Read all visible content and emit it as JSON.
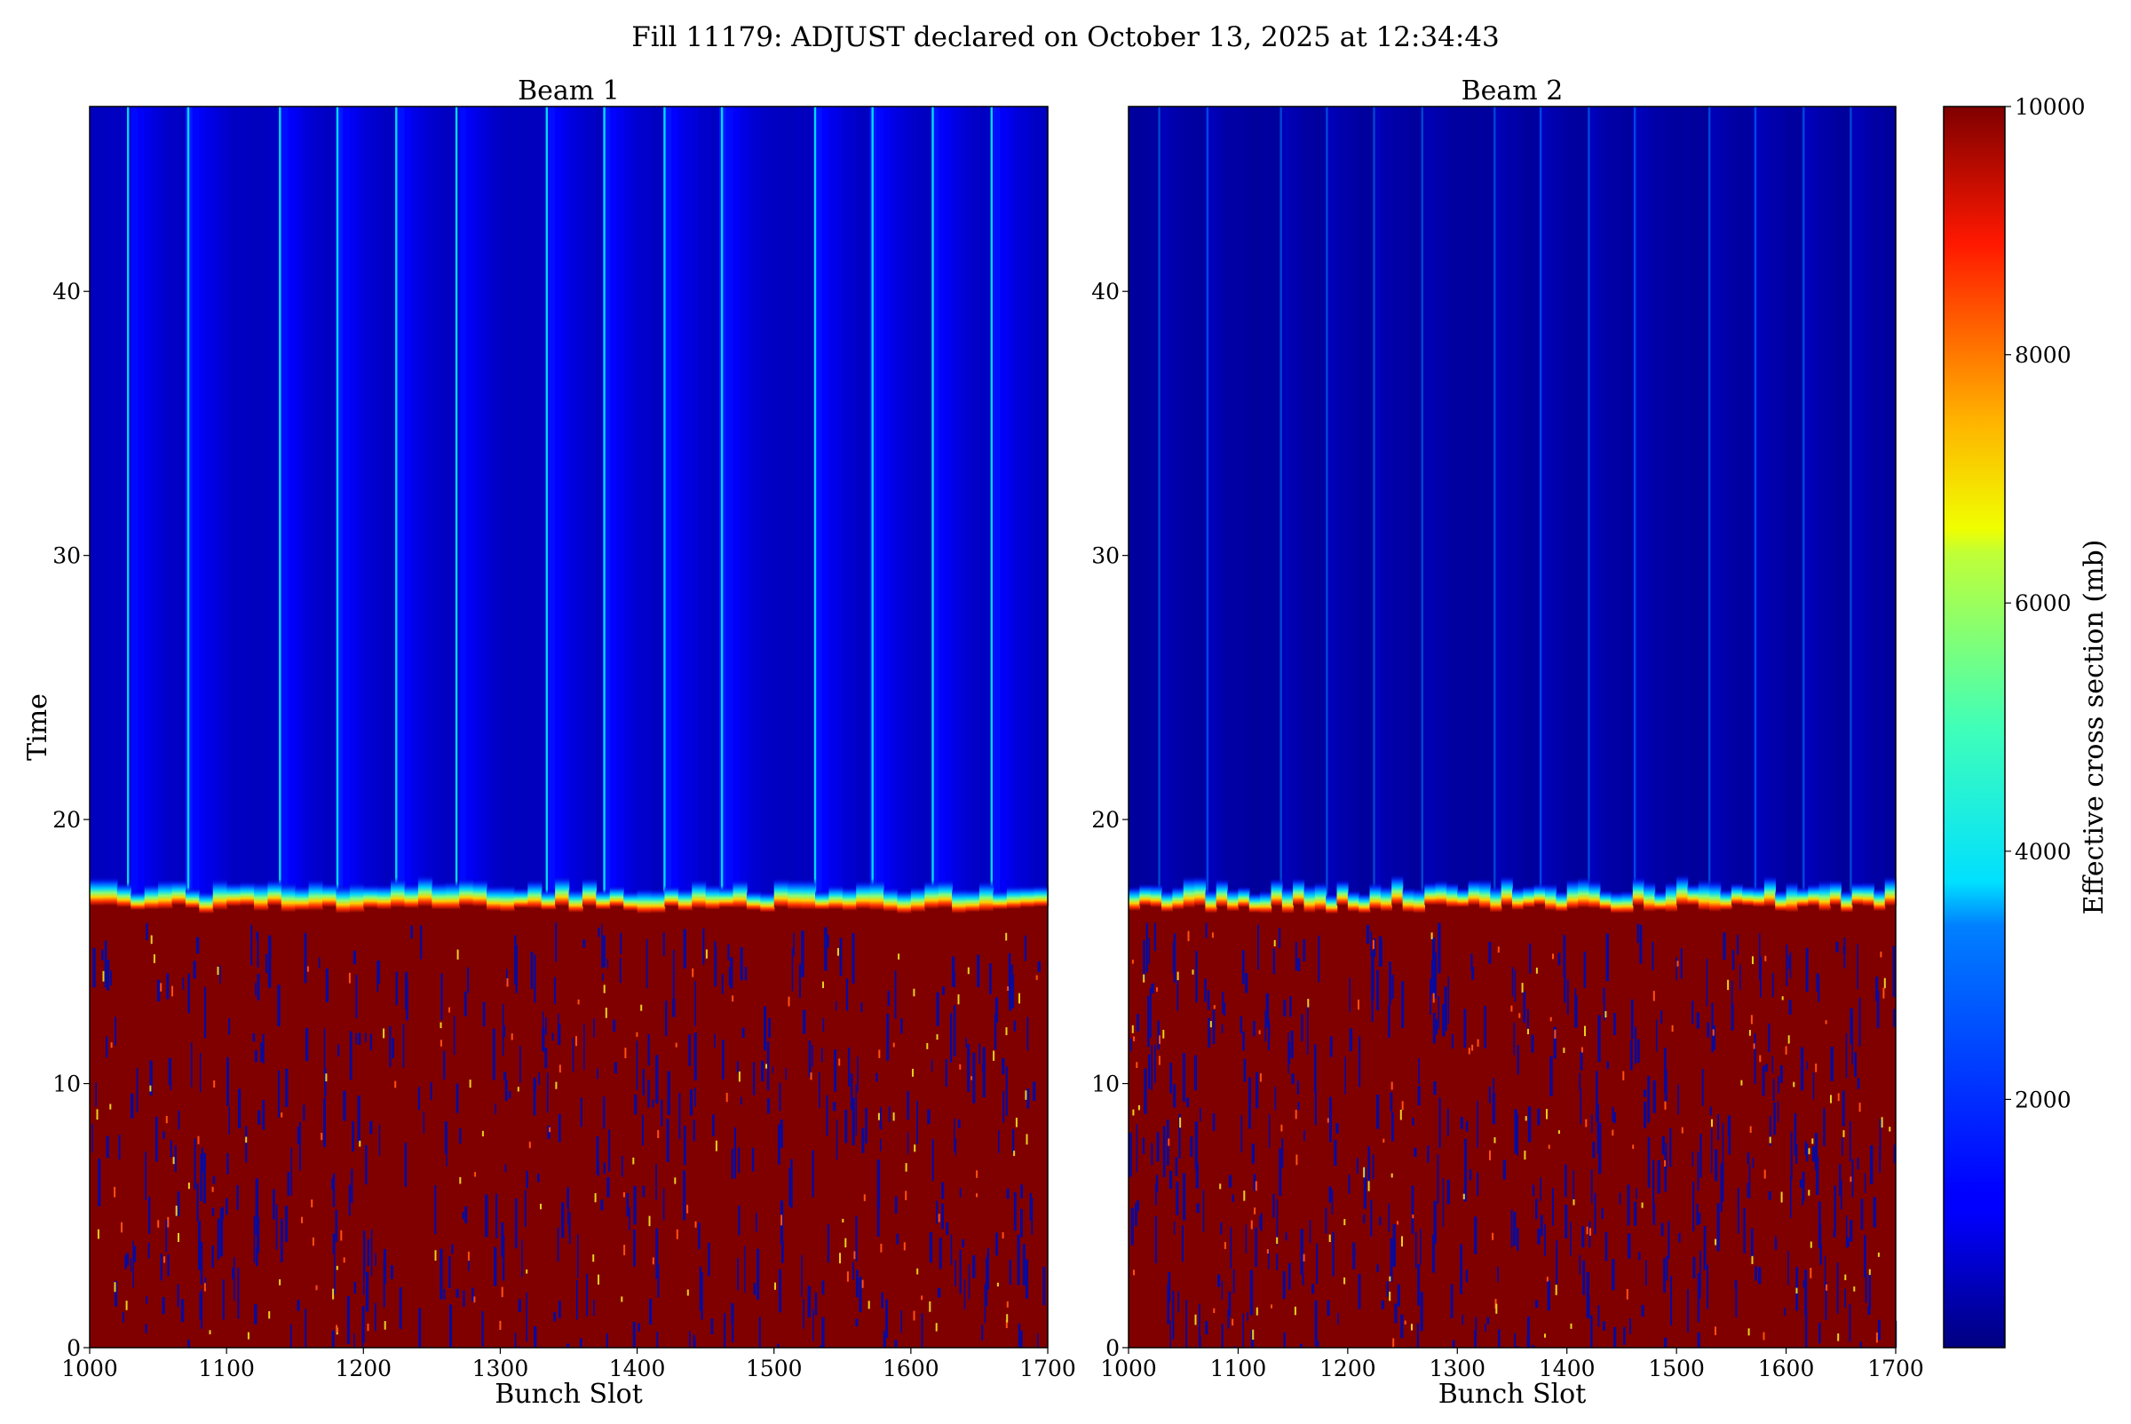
{
  "figure": {
    "suptitle": "Fill 11179: ADJUST declared on October 13, 2025 at 12:34:43"
  },
  "chart_data": [
    {
      "type": "heatmap",
      "title": "Beam 1",
      "xlabel": "Bunch Slot",
      "ylabel": "Time",
      "xlim": [
        1000,
        1700
      ],
      "ylim": [
        0,
        47
      ],
      "xticks": [
        "1000",
        "1100",
        "1200",
        "1300",
        "1400",
        "1500",
        "1600",
        "1700"
      ],
      "yticks": [
        "0",
        "10",
        "20",
        "30",
        "40"
      ],
      "transition_time": 16.8,
      "value_before_transition": 10000,
      "value_after_transition_range": [
        300,
        1500
      ],
      "bright_train_slots": [
        1028,
        1072,
        1139,
        1181,
        1224,
        1268,
        1334,
        1376,
        1420,
        1462,
        1530,
        1572,
        1616,
        1659
      ],
      "bright_train_peak": 3500
    },
    {
      "type": "heatmap",
      "title": "Beam 2",
      "xlabel": "Bunch Slot",
      "ylabel": "",
      "xlim": [
        1000,
        1700
      ],
      "ylim": [
        0,
        47
      ],
      "xticks": [
        "1000",
        "1100",
        "1200",
        "1300",
        "1400",
        "1500",
        "1600",
        "1700"
      ],
      "yticks": [
        "0",
        "10",
        "20",
        "30",
        "40"
      ],
      "transition_time": 16.8,
      "value_before_transition": 10000,
      "value_after_transition_range": [
        150,
        600
      ],
      "bright_train_slots": [
        1028,
        1072,
        1139,
        1181,
        1224,
        1268,
        1334,
        1376,
        1420,
        1462,
        1530,
        1572,
        1616,
        1659
      ],
      "bright_train_peak": 2500
    }
  ],
  "colorbar": {
    "label": "Effective cross section (mb)",
    "colormap": "jet",
    "vmin": 0,
    "vmax": 10000,
    "ticks": [
      "2000",
      "4000",
      "6000",
      "8000",
      "10000"
    ]
  }
}
